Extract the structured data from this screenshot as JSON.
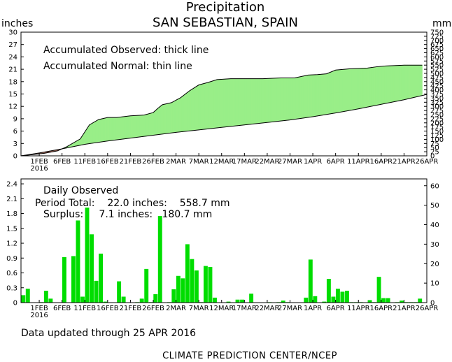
{
  "title": "Precipitation",
  "subtitle": "SAN SEBASTIAN, SPAIN",
  "left_unit": "inches",
  "right_unit": "mm",
  "top_panel": {
    "legend_line1": "Accumulated Observed: thick line",
    "legend_line2": "Accumulated Normal: thin line",
    "y_ticks_in": [
      "0",
      "3",
      "6",
      "9",
      "12",
      "15",
      "18",
      "21",
      "24",
      "27",
      "30"
    ],
    "y_ticks_mm": [
      "0",
      "25",
      "50",
      "75",
      "100",
      "125",
      "150",
      "175",
      "200",
      "225",
      "250",
      "275",
      "300",
      "325",
      "350",
      "375",
      "400",
      "425",
      "450",
      "475",
      "500",
      "525",
      "550",
      "575",
      "600",
      "625",
      "650",
      "675",
      "700",
      "725",
      "750"
    ]
  },
  "bottom_panel": {
    "label1": "Daily Observed",
    "label2": "Period Total:    22.0 inches:    558.7 mm",
    "label3": "Surplus:     7.1 inches:   180.7 mm",
    "y_ticks_in": [
      "0",
      "0.3",
      "0.6",
      "0.9",
      "1.2",
      "1.5",
      "1.8",
      "2.1",
      "2.4"
    ],
    "y_ticks_mm": [
      "0",
      "10",
      "20",
      "30",
      "40",
      "50",
      "60"
    ]
  },
  "x_ticks": [
    "1FEB",
    "6FEB",
    "11FEB",
    "16FEB",
    "21FEB",
    "26FEB",
    "2MAR",
    "7MAR",
    "12MAR",
    "17MAR",
    "22MAR",
    "27MAR",
    "1APR",
    "6APR",
    "11APR",
    "16APR",
    "21APR",
    "26APR"
  ],
  "x_year": "2016",
  "footer": "Data updated through 25 APR 2016",
  "credit": "CLIMATE PREDICTION CENTER/NCEP",
  "colors": {
    "surplus_fill": "#99ee88",
    "deficit_fill": "#bb7766",
    "bar": "#00dd00",
    "line": "#000000"
  },
  "chart_data": [
    {
      "type": "area",
      "title": "Precipitation",
      "subtitle": "SAN SEBASTIAN, SPAIN",
      "ylabel": "inches",
      "ylabel_right": "mm",
      "ylim": [
        0,
        30
      ],
      "ylim_right": [
        0,
        750
      ],
      "x_start": "28JAN2016",
      "x_end": "26APR2016",
      "series": [
        {
          "name": "Accumulated Observed",
          "x": [
            "28JAN",
            "2FEB",
            "5FEB",
            "7FEB",
            "10FEB",
            "12FEB",
            "14FEB",
            "16FEB",
            "18FEB",
            "21FEB",
            "24FEB",
            "26FEB",
            "27FEB",
            "28FEB",
            "1MAR",
            "3MAR",
            "5MAR",
            "7MAR",
            "9MAR",
            "11MAR",
            "14MAR",
            "17MAR",
            "21MAR",
            "25MAR",
            "28MAR",
            "31MAR",
            "2APR",
            "4APR",
            "6APR",
            "9APR",
            "13APR",
            "15APR",
            "17APR",
            "21APR",
            "25APR"
          ],
          "values": [
            0.0,
            0.6,
            1.2,
            2.2,
            4.1,
            7.5,
            8.8,
            9.3,
            9.3,
            9.7,
            9.9,
            10.5,
            11.5,
            12.4,
            12.9,
            14.1,
            15.8,
            17.2,
            17.8,
            18.5,
            18.7,
            18.7,
            18.7,
            18.9,
            18.9,
            19.6,
            19.7,
            19.9,
            20.8,
            21.1,
            21.3,
            21.6,
            21.8,
            22.0,
            22.0
          ]
        },
        {
          "name": "Accumulated Normal",
          "x": [
            "28JAN",
            "1FEB",
            "6FEB",
            "11FEB",
            "16FEB",
            "21FEB",
            "26FEB",
            "2MAR",
            "7MAR",
            "12MAR",
            "17MAR",
            "22MAR",
            "27MAR",
            "1APR",
            "6APR",
            "11APR",
            "16APR",
            "21APR",
            "26APR"
          ],
          "values": [
            0.0,
            0.7,
            1.7,
            2.8,
            3.6,
            4.3,
            5.0,
            5.7,
            6.3,
            6.9,
            7.5,
            8.1,
            8.7,
            9.5,
            10.4,
            11.4,
            12.5,
            13.6,
            14.9
          ]
        }
      ]
    },
    {
      "type": "bar",
      "title": "Daily Observed",
      "ylabel": "inches",
      "ylabel_right": "mm",
      "ylim": [
        0,
        2.5
      ],
      "ylim_right": [
        0,
        63.5
      ],
      "period_total": "22.0 inches: 558.7 mm",
      "surplus": "7.1 inches: 180.7 mm",
      "x": [
        "29JAN",
        "30JAN",
        "2FEB",
        "3FEB",
        "4FEB",
        "7FEB",
        "9FEB",
        "10FEB",
        "11FEB",
        "12FEB",
        "13FEB",
        "14FEB",
        "15FEB",
        "16FEB",
        "19FEB",
        "20FEB",
        "23FEB",
        "24FEB",
        "25FEB",
        "26FEB",
        "27FEB",
        "28FEB",
        "1MAR",
        "2MAR",
        "3MAR",
        "4MAR",
        "5MAR",
        "6MAR",
        "7MAR",
        "8MAR",
        "9MAR",
        "10MAR",
        "11MAR",
        "14MAR",
        "16MAR",
        "17MAR",
        "19MAR",
        "23MAR",
        "25MAR",
        "26MAR",
        "27MAR",
        "31MAR",
        "1APR",
        "2APR",
        "4APR",
        "5APR",
        "6APR",
        "7APR",
        "8APR",
        "9APR",
        "10APR",
        "11APR",
        "12APR",
        "14APR",
        "15APR",
        "16APR",
        "17APR",
        "18APR",
        "20APR",
        "21APR",
        "22APR",
        "23APR",
        "24APR",
        "25APR"
      ],
      "values": [
        0.15,
        0.28,
        0.01,
        0.24,
        0.08,
        0.92,
        0.94,
        1.66,
        0.12,
        1.92,
        1.38,
        0.44,
        0.99,
        0.02,
        0.43,
        0.12,
        0.01,
        0.08,
        0.68,
        0.01,
        0.17,
        1.75,
        0.01,
        0.27,
        0.54,
        0.49,
        1.18,
        0.88,
        0.65,
        0.01,
        0.74,
        0.72,
        0.1,
        0.02,
        0.06,
        0.06,
        0.18,
        0.01,
        0.01,
        0.04,
        0.01,
        0.1,
        0.87,
        0.13,
        0.02,
        0.48,
        0.12,
        0.28,
        0.22,
        0.24,
        0.01,
        0.01,
        0.01,
        0.05,
        0.01,
        0.52,
        0.09,
        0.09,
        0.01,
        0.04,
        0.01,
        0.01,
        0.01,
        0.08
      ]
    }
  ]
}
